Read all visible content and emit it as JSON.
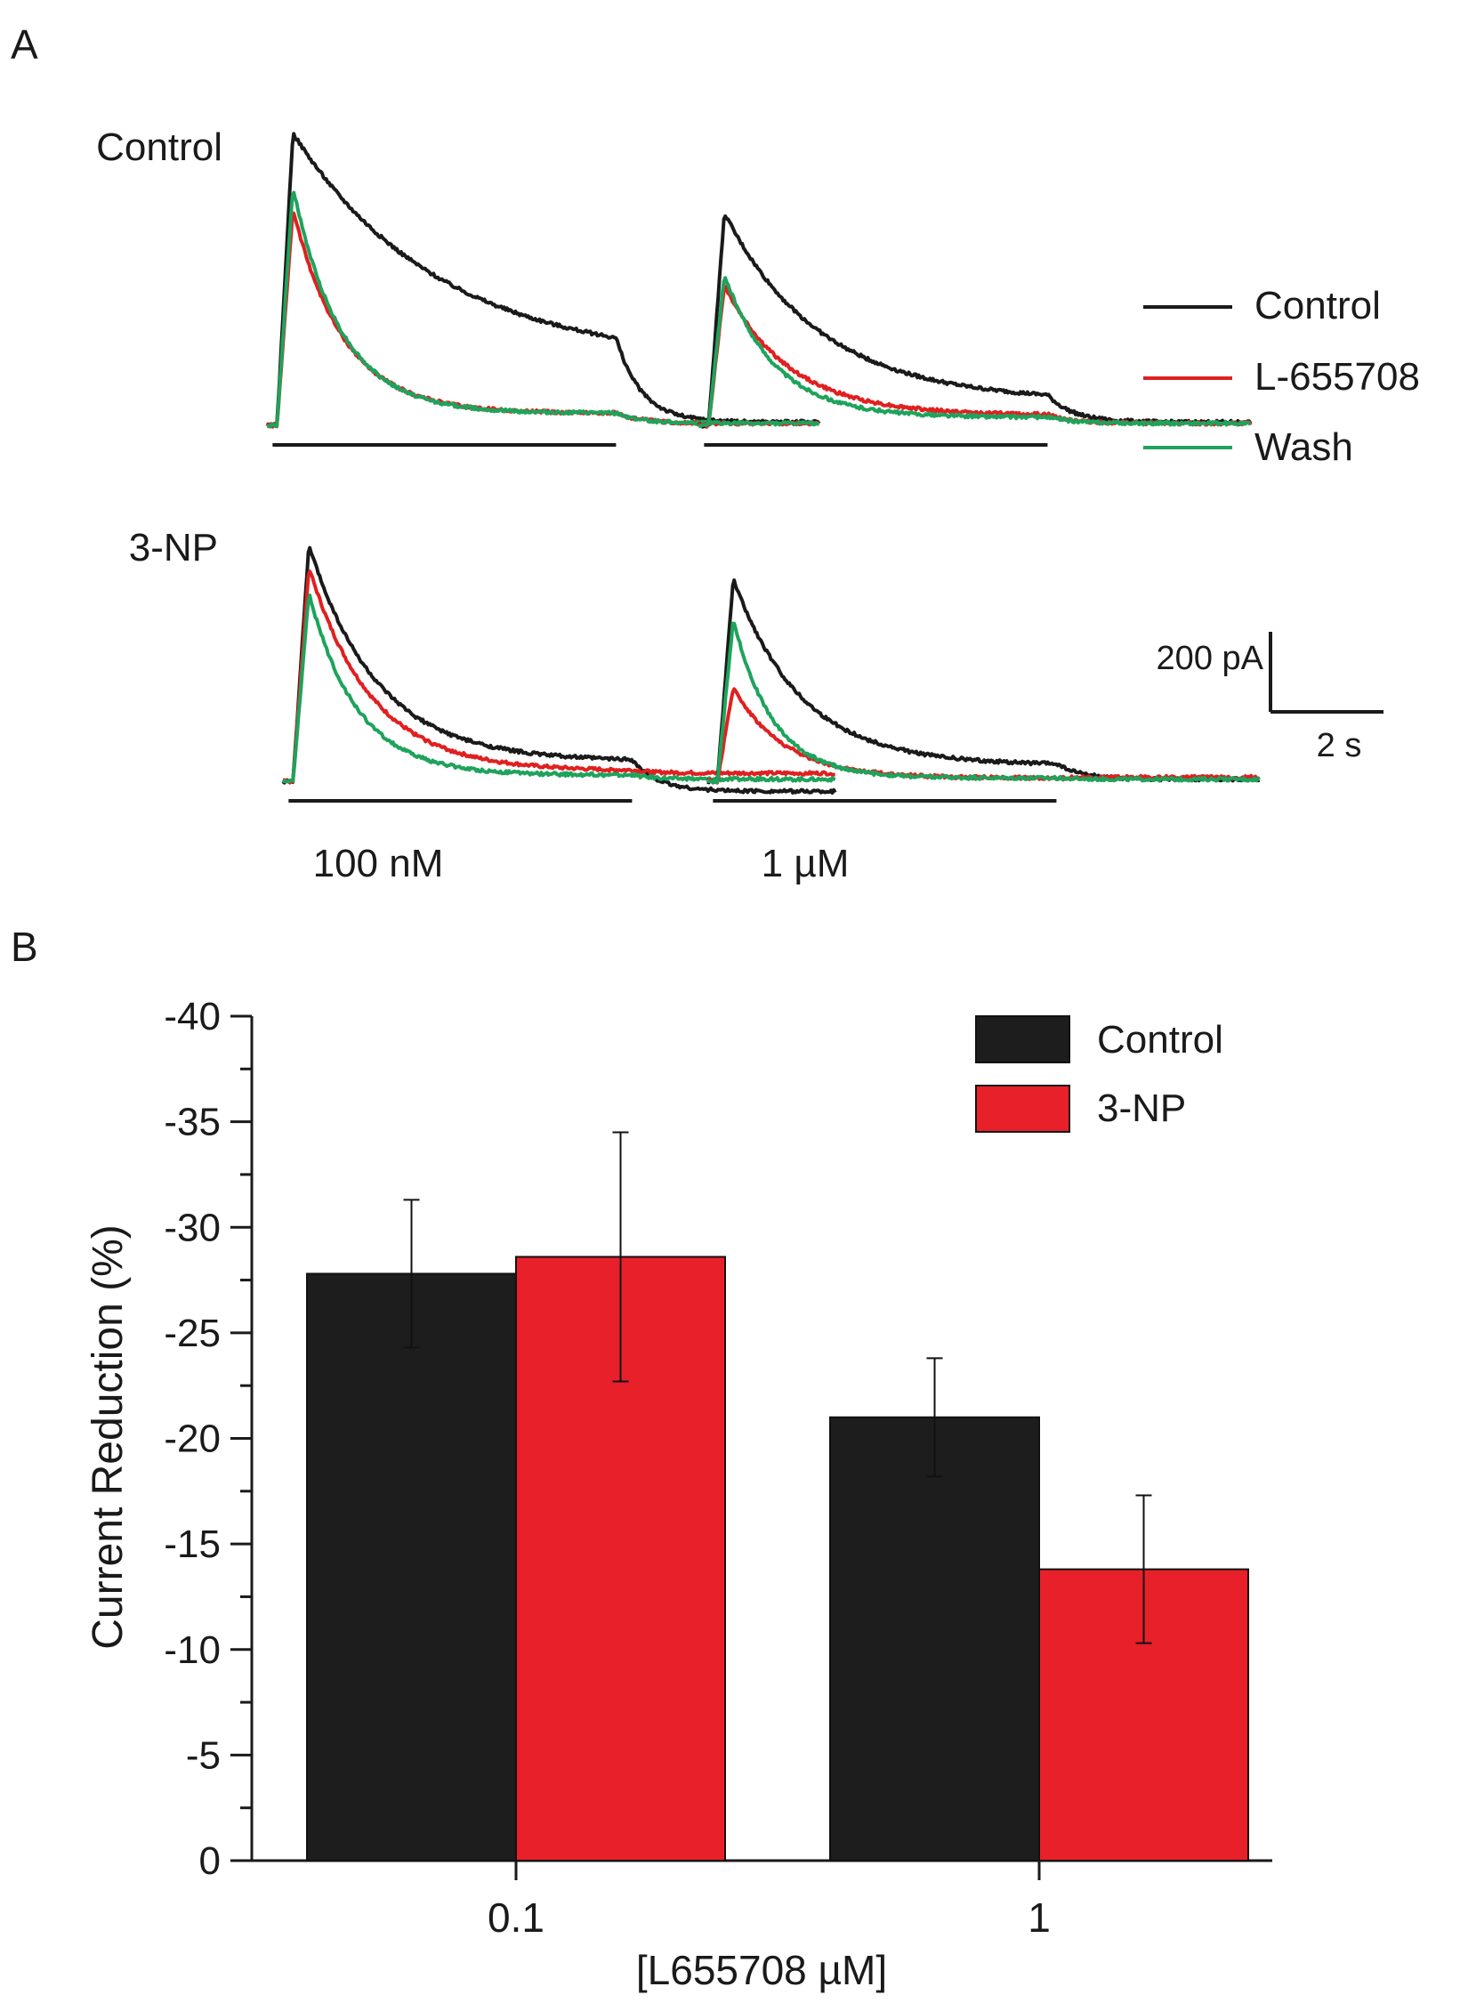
{
  "chart_data": [
    {
      "panel": "A",
      "type": "line",
      "description_note": "Current traces in response to GABA application; y in pA, x in s",
      "row_labels": [
        "Control",
        "3-NP"
      ],
      "column_labels": [
        "100 nM",
        "1 µM"
      ],
      "legend": [
        {
          "name": "Control",
          "color": "#1a1a1a"
        },
        {
          "name": "L-655708",
          "color": "#e02020"
        },
        {
          "name": "Wash",
          "color": "#1fa35c"
        }
      ],
      "scale_bar": {
        "current_label": "200 pA",
        "current_value_pA": 200,
        "time_label": "2 s",
        "time_value_s": 2
      },
      "application_duration_s": 6,
      "trace_duration_s": 9.8,
      "panels": [
        {
          "row": "Control",
          "column": "100 nM",
          "series": [
            {
              "name": "Control",
              "baseline_pA": 0,
              "peak_pA": 730,
              "decay_s": 2.6,
              "plateau_pA": 155,
              "tail_pA": 8
            },
            {
              "name": "L-655708",
              "baseline_pA": 0,
              "peak_pA": 540,
              "decay_s": 0.9,
              "plateau_pA": 30,
              "tail_pA": 5
            },
            {
              "name": "Wash",
              "baseline_pA": 0,
              "peak_pA": 595,
              "decay_s": 0.85,
              "plateau_pA": 30,
              "tail_pA": 5
            }
          ]
        },
        {
          "row": "Control",
          "column": "1 µM",
          "series": [
            {
              "name": "Control",
              "baseline_pA": 0,
              "peak_pA": 530,
              "decay_s": 1.7,
              "plateau_pA": 60,
              "tail_pA": 8
            },
            {
              "name": "L-655708",
              "baseline_pA": 0,
              "peak_pA": 350,
              "decay_s": 1.15,
              "plateau_pA": 25,
              "tail_pA": 5
            },
            {
              "name": "Wash",
              "baseline_pA": 0,
              "peak_pA": 375,
              "decay_s": 0.9,
              "plateau_pA": 20,
              "tail_pA": 5
            }
          ]
        },
        {
          "row": "3-NP",
          "column": "100 nM",
          "series": [
            {
              "name": "Control",
              "baseline_pA": 0,
              "peak_pA": 590,
              "decay_s": 1.2,
              "plateau_pA": 50,
              "tail_pA": -25
            },
            {
              "name": "L-655708",
              "baseline_pA": 0,
              "peak_pA": 535,
              "decay_s": 1.1,
              "plateau_pA": 25,
              "tail_pA": 20
            },
            {
              "name": "Wash",
              "baseline_pA": 0,
              "peak_pA": 470,
              "decay_s": 0.85,
              "plateau_pA": 15,
              "tail_pA": 5
            }
          ]
        },
        {
          "row": "3-NP",
          "column": "1 µM",
          "series": [
            {
              "name": "Control",
              "baseline_pA": 0,
              "peak_pA": 505,
              "decay_s": 1.2,
              "plateau_pA": 40,
              "tail_pA": 5
            },
            {
              "name": "L-655708",
              "baseline_pA": 0,
              "peak_pA": 235,
              "decay_s": 0.9,
              "plateau_pA": 8,
              "tail_pA": 10
            },
            {
              "name": "Wash",
              "baseline_pA": 0,
              "peak_pA": 405,
              "decay_s": 0.7,
              "plateau_pA": 8,
              "tail_pA": 5
            }
          ]
        }
      ]
    },
    {
      "panel": "B",
      "type": "bar",
      "title": "",
      "xlabel": "[L655708 µM]",
      "ylabel": "Current Reduction (%)",
      "categories": [
        "0.1",
        "1"
      ],
      "series": [
        {
          "name": "Control",
          "color": "#1d1d1d",
          "values": [
            -27.8,
            -21.0
          ],
          "errors": [
            3.5,
            2.8
          ]
        },
        {
          "name": "3-NP",
          "color": "#e8202a",
          "values": [
            -28.6,
            -13.8
          ],
          "errors": [
            5.9,
            3.5
          ]
        }
      ],
      "ylim": [
        0,
        -40
      ],
      "yticks": [
        0,
        -5,
        -10,
        -15,
        -20,
        -25,
        -30,
        -35,
        -40
      ],
      "ytick_labels": [
        "0",
        "-5",
        "-10",
        "-15",
        "-20",
        "-25",
        "-30",
        "-35",
        "-40"
      ],
      "legend_position": "top-right",
      "grid": false
    }
  ],
  "labels": {
    "panel_a": "A",
    "panel_b": "B"
  }
}
